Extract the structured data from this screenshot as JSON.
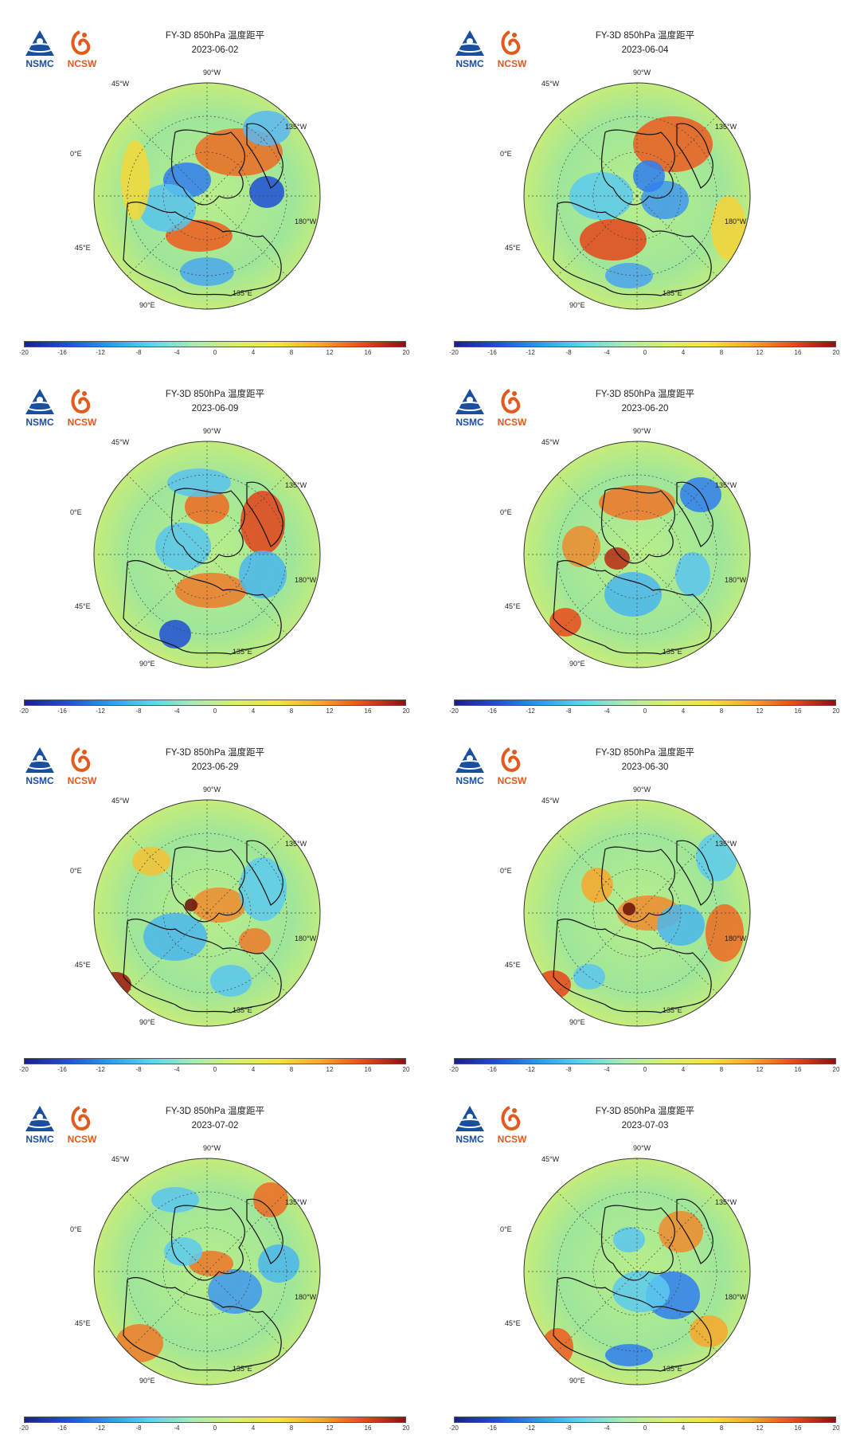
{
  "logos": {
    "left_text": "NSMC",
    "right_text": "NCSW"
  },
  "colorbar": {
    "ticks": [
      "-20",
      "-16",
      "-12",
      "-8",
      "-4",
      "0",
      "4",
      "8",
      "12",
      "16",
      "20"
    ],
    "colors": [
      "#1b1f8a",
      "#1f4fd6",
      "#2a9bea",
      "#5bd6ef",
      "#a8ecb2",
      "#d8f06d",
      "#f5e33b",
      "#f7a72a",
      "#ea4a1c",
      "#8e1010"
    ]
  },
  "map_labels": {
    "deg_45w": "45°W",
    "deg_90w": "90°W",
    "deg_135w": "135°W",
    "deg_0e": "0°E",
    "deg_180w": "180°W",
    "deg_45e": "45°E",
    "deg_90e": "90°E",
    "deg_135e": "135°E"
  },
  "panels": [
    {
      "title": "FY-3D 850hPa 温度距平",
      "date": "2023-06-02"
    },
    {
      "title": "FY-3D 850hPa 温度距平",
      "date": "2023-06-04"
    },
    {
      "title": "FY-3D 850hPa 温度距平",
      "date": "2023-06-09"
    },
    {
      "title": "FY-3D 850hPa 温度距平",
      "date": "2023-06-20"
    },
    {
      "title": "FY-3D 850hPa 温度距平",
      "date": "2023-06-29"
    },
    {
      "title": "FY-3D 850hPa 温度距平",
      "date": "2023-06-30"
    },
    {
      "title": "FY-3D 850hPa 温度距平",
      "date": "2023-07-02"
    },
    {
      "title": "FY-3D 850hPa 温度距平",
      "date": "2023-07-03"
    }
  ]
}
